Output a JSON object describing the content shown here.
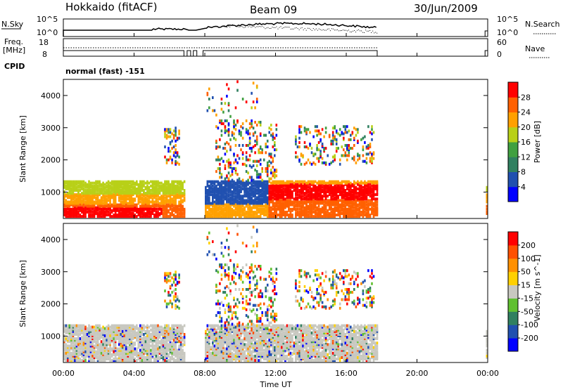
{
  "header": {
    "station": "Hokkaido (fitACF)",
    "beam": "Beam 09",
    "date": "30/Jun/2009"
  },
  "noise_panel": {
    "left_label": "N.Sky",
    "right_label": "N.Search",
    "left_ticks": [
      "10^5",
      "10^0"
    ],
    "right_ticks": [
      "10^5",
      "10^0"
    ]
  },
  "freq_panel": {
    "left_label_line1": "Freq.",
    "left_label_line2": "[MHz]",
    "right_label": "Nave",
    "left_ticks": [
      "18",
      "8"
    ],
    "right_ticks": [
      "60",
      "0"
    ]
  },
  "cpid": {
    "label": "CPID",
    "value": "normal (fast) -151"
  },
  "chart_data": [
    {
      "type": "heatmap",
      "name": "power",
      "ylabel": "Slant Range [km]",
      "xlabel": "",
      "ylim": [
        180,
        4500
      ],
      "yticks": [
        "1000",
        "2000",
        "3000",
        "4000"
      ],
      "colorbar_label": "Power [dB]",
      "colorbar_ticks": [
        "4",
        "8",
        "12",
        "16",
        "20",
        "24",
        "28"
      ],
      "colorbar_colors": [
        "#0000ff",
        "#2050b0",
        "#308060",
        "#40a040",
        "#b8d018",
        "#ffa000",
        "#ff6000",
        "#ff0000"
      ]
    },
    {
      "type": "heatmap",
      "name": "velocity",
      "ylabel": "Slant Range [km]",
      "xlabel": "Time UT",
      "ylim": [
        180,
        4500
      ],
      "yticks": [
        "1000",
        "2000",
        "3000",
        "4000"
      ],
      "xticks": [
        "00:00",
        "04:00",
        "08:00",
        "12:00",
        "16:00",
        "20:00",
        "00:00"
      ],
      "colorbar_label": "Velocity [m s^-1]",
      "colorbar_ticks": [
        "200",
        "100",
        "50",
        "15",
        "-15",
        "-50",
        "-100",
        "-200"
      ],
      "colorbar_colors": [
        "#0000ff",
        "#2050b0",
        "#308060",
        "#60c030",
        "#c8c8c0",
        "#ffd000",
        "#ff9000",
        "#ff5000",
        "#ff0000"
      ]
    }
  ]
}
